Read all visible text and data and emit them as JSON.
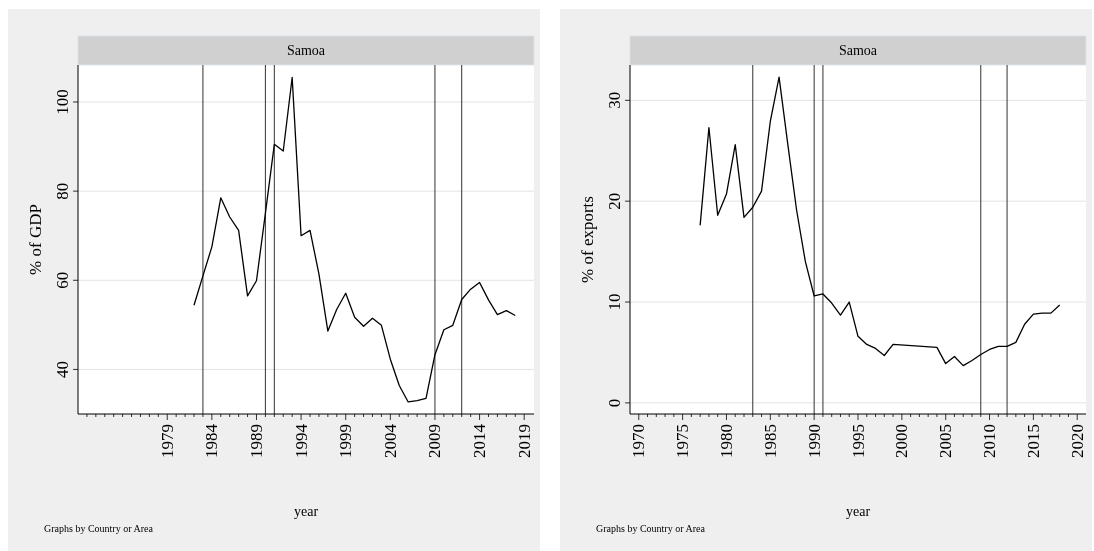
{
  "chart_data": [
    {
      "type": "line",
      "title": "Samoa",
      "xlabel": "year",
      "ylabel": "% of GDP",
      "annotations": [
        "Graphs by Country or Area"
      ],
      "x": [
        1982,
        1983,
        1984,
        1985,
        1986,
        1987,
        1988,
        1989,
        1990,
        1991,
        1992,
        1993,
        1994,
        1995,
        1996,
        1997,
        1998,
        1999,
        2000,
        2001,
        2002,
        2003,
        2004,
        2005,
        2006,
        2007,
        2008,
        2009,
        2010,
        2011,
        2012,
        2013,
        2014,
        2015,
        2016,
        2017,
        2018
      ],
      "series": [
        {
          "color": "#000000",
          "values": [
            54.4,
            61,
            67.5,
            78.5,
            74.2,
            71.2,
            56.5,
            59.9,
            75,
            90.5,
            89,
            105.5,
            70,
            71.2,
            61.4,
            48.6,
            53.5,
            57.1,
            51.7,
            49.7,
            51.5,
            49.9,
            42.3,
            36.4,
            32.7,
            33,
            33.5,
            43.3,
            48.9,
            49.9,
            55.7,
            58,
            59.5,
            55.6,
            52.3,
            53.2,
            52.1
          ]
        }
      ],
      "xlim": [
        1969,
        2020.1
      ],
      "ylim": [
        30,
        108.3
      ],
      "yticks": [
        40,
        60,
        80,
        100
      ],
      "xticks": [
        {
          "value": 1970,
          "label": null
        },
        {
          "value": 1971,
          "label": null
        },
        {
          "value": 1972,
          "label": null
        },
        {
          "value": 1973,
          "label": null
        },
        {
          "value": 1974,
          "label": null
        },
        {
          "value": 1975,
          "label": null
        },
        {
          "value": 1976,
          "label": null
        },
        {
          "value": 1977,
          "label": null
        },
        {
          "value": 1978,
          "label": null
        },
        1979,
        {
          "value": 1980,
          "label": null
        },
        {
          "value": 1981,
          "label": null
        },
        {
          "value": 1982,
          "label": null
        },
        {
          "value": 1983,
          "label": null
        },
        1984,
        {
          "value": 1985,
          "label": null
        },
        {
          "value": 1986,
          "label": null
        },
        {
          "value": 1987,
          "label": null
        },
        {
          "value": 1988,
          "label": null
        },
        1989,
        {
          "value": 1990,
          "label": null
        },
        {
          "value": 1991,
          "label": null
        },
        {
          "value": 1992,
          "label": null
        },
        {
          "value": 1993,
          "label": null
        },
        1994,
        {
          "value": 1995,
          "label": null
        },
        {
          "value": 1996,
          "label": null
        },
        {
          "value": 1997,
          "label": null
        },
        {
          "value": 1998,
          "label": null
        },
        1999,
        {
          "value": 2000,
          "label": null
        },
        {
          "value": 2001,
          "label": null
        },
        {
          "value": 2002,
          "label": null
        },
        {
          "value": 2003,
          "label": null
        },
        2004,
        {
          "value": 2005,
          "label": null
        },
        {
          "value": 2006,
          "label": null
        },
        {
          "value": 2007,
          "label": null
        },
        {
          "value": 2008,
          "label": null
        },
        2009,
        {
          "value": 2010,
          "label": null
        },
        {
          "value": 2011,
          "label": null
        },
        {
          "value": 2012,
          "label": null
        },
        {
          "value": 2013,
          "label": null
        },
        2014,
        {
          "value": 2015,
          "label": null
        },
        {
          "value": 2016,
          "label": null
        },
        {
          "value": 2017,
          "label": null
        },
        {
          "value": 2018,
          "label": null
        },
        2019
      ],
      "ref_lines": [
        {
          "axis": "x",
          "value": 1983,
          "color": "#333333"
        },
        {
          "axis": "x",
          "value": 1990,
          "color": "#333333"
        },
        {
          "axis": "x",
          "value": 1991,
          "color": "#333333"
        },
        {
          "axis": "x",
          "value": 2009,
          "color": "#333333"
        },
        {
          "axis": "x",
          "value": 2012,
          "color": "#333333"
        }
      ],
      "grid": "y",
      "line_style": "solid"
    },
    {
      "type": "line",
      "title": "Samoa",
      "xlabel": "year",
      "ylabel": "% of exports",
      "annotations": [
        "Graphs by Country or Area"
      ],
      "x": [
        1977,
        1978,
        1979,
        1980,
        1981,
        1982,
        1983,
        1984,
        1985,
        1986,
        1987,
        1988,
        1989,
        1990,
        1991,
        1992,
        1993,
        1994,
        1995,
        1996,
        1997,
        1998,
        1999,
        2004,
        2005,
        2006,
        2007,
        2008,
        2009,
        2010,
        2011,
        2012,
        2013,
        2014,
        2015,
        2016,
        2017,
        2018
      ],
      "series": [
        {
          "color": "#000000",
          "values": [
            17.6,
            27.3,
            18.6,
            20.7,
            25.6,
            18.4,
            19.4,
            21,
            27.9,
            32.3,
            25.6,
            19.1,
            14,
            10.6,
            10.8,
            9.9,
            8.7,
            10,
            6.6,
            5.8,
            5.4,
            4.7,
            5.8,
            5.5,
            3.9,
            4.6,
            3.7,
            4.2,
            4.8,
            5.3,
            5.6,
            5.6,
            6,
            7.8,
            8.8,
            8.9,
            8.9,
            9.7
          ]
        }
      ],
      "xlim": [
        1969,
        2021
      ],
      "ylim": [
        -1.1,
        33.5
      ],
      "yticks": [
        0,
        10,
        20,
        30
      ],
      "xticks": [
        1970,
        {
          "value": 1971,
          "label": null
        },
        {
          "value": 1972,
          "label": null
        },
        {
          "value": 1973,
          "label": null
        },
        {
          "value": 1974,
          "label": null
        },
        1975,
        {
          "value": 1976,
          "label": null
        },
        {
          "value": 1977,
          "label": null
        },
        {
          "value": 1978,
          "label": null
        },
        {
          "value": 1979,
          "label": null
        },
        1980,
        {
          "value": 1981,
          "label": null
        },
        {
          "value": 1982,
          "label": null
        },
        {
          "value": 1983,
          "label": null
        },
        {
          "value": 1984,
          "label": null
        },
        1985,
        {
          "value": 1986,
          "label": null
        },
        {
          "value": 1987,
          "label": null
        },
        {
          "value": 1988,
          "label": null
        },
        {
          "value": 1989,
          "label": null
        },
        1990,
        {
          "value": 1991,
          "label": null
        },
        {
          "value": 1992,
          "label": null
        },
        {
          "value": 1993,
          "label": null
        },
        {
          "value": 1994,
          "label": null
        },
        1995,
        {
          "value": 1996,
          "label": null
        },
        {
          "value": 1997,
          "label": null
        },
        {
          "value": 1998,
          "label": null
        },
        {
          "value": 1999,
          "label": null
        },
        2000,
        {
          "value": 2001,
          "label": null
        },
        {
          "value": 2002,
          "label": null
        },
        {
          "value": 2003,
          "label": null
        },
        {
          "value": 2004,
          "label": null
        },
        2005,
        {
          "value": 2006,
          "label": null
        },
        {
          "value": 2007,
          "label": null
        },
        {
          "value": 2008,
          "label": null
        },
        {
          "value": 2009,
          "label": null
        },
        2010,
        {
          "value": 2011,
          "label": null
        },
        {
          "value": 2012,
          "label": null
        },
        {
          "value": 2013,
          "label": null
        },
        {
          "value": 2014,
          "label": null
        },
        2015,
        {
          "value": 2016,
          "label": null
        },
        {
          "value": 2017,
          "label": null
        },
        {
          "value": 2018,
          "label": null
        },
        {
          "value": 2019,
          "label": null
        },
        2020
      ],
      "ref_lines": [
        {
          "axis": "x",
          "value": 1983,
          "color": "#333333"
        },
        {
          "axis": "x",
          "value": 1990,
          "color": "#333333"
        },
        {
          "axis": "x",
          "value": 1991,
          "color": "#333333"
        },
        {
          "axis": "x",
          "value": 2009,
          "color": "#333333"
        },
        {
          "axis": "x",
          "value": 2012,
          "color": "#333333"
        }
      ],
      "grid": "y",
      "line_style": "solid"
    }
  ]
}
